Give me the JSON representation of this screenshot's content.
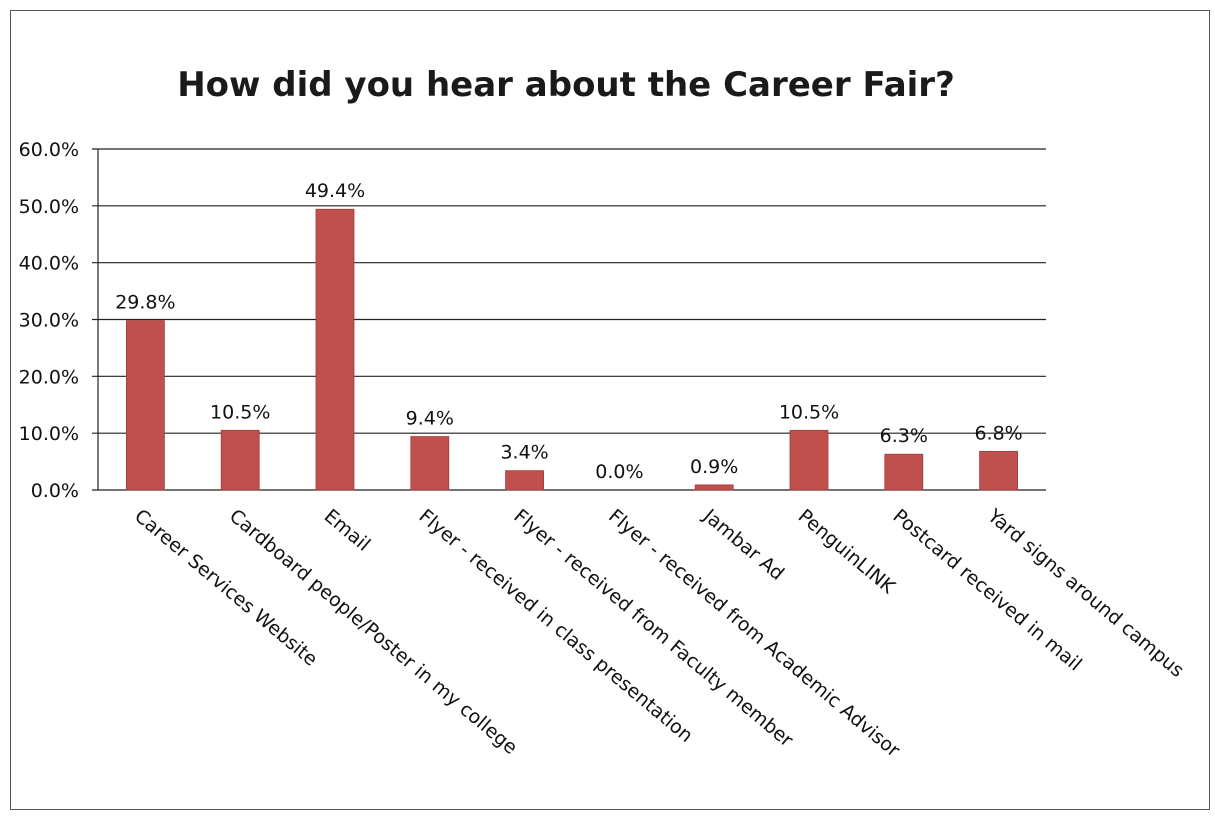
{
  "chart_data": {
    "type": "bar",
    "title": "How did you hear about the Career Fair?",
    "categories": [
      "Career Services Website",
      "Cardboard people/Poster in my college",
      "Email",
      "Flyer - received in class presentation",
      "Flyer - received from Faculty member",
      "Flyer - received from Academic Advisor",
      "Jambar Ad",
      "PenguinLINK",
      "Postcard received in mail",
      "Yard signs around campus"
    ],
    "values": [
      29.8,
      10.5,
      49.4,
      9.4,
      3.4,
      0.0,
      0.9,
      10.5,
      6.3,
      6.8
    ],
    "data_labels": [
      "29.8%",
      "10.5%",
      "49.4%",
      "9.4%",
      "3.4%",
      "0.0%",
      "0.9%",
      "10.5%",
      "6.3%",
      "6.8%"
    ],
    "ylim": [
      0,
      60
    ],
    "yticks": [
      "0.0%",
      "10.0%",
      "20.0%",
      "30.0%",
      "40.0%",
      "50.0%",
      "60.0%"
    ],
    "grid": true,
    "legend": "none",
    "bar_color": "#c0504d"
  }
}
